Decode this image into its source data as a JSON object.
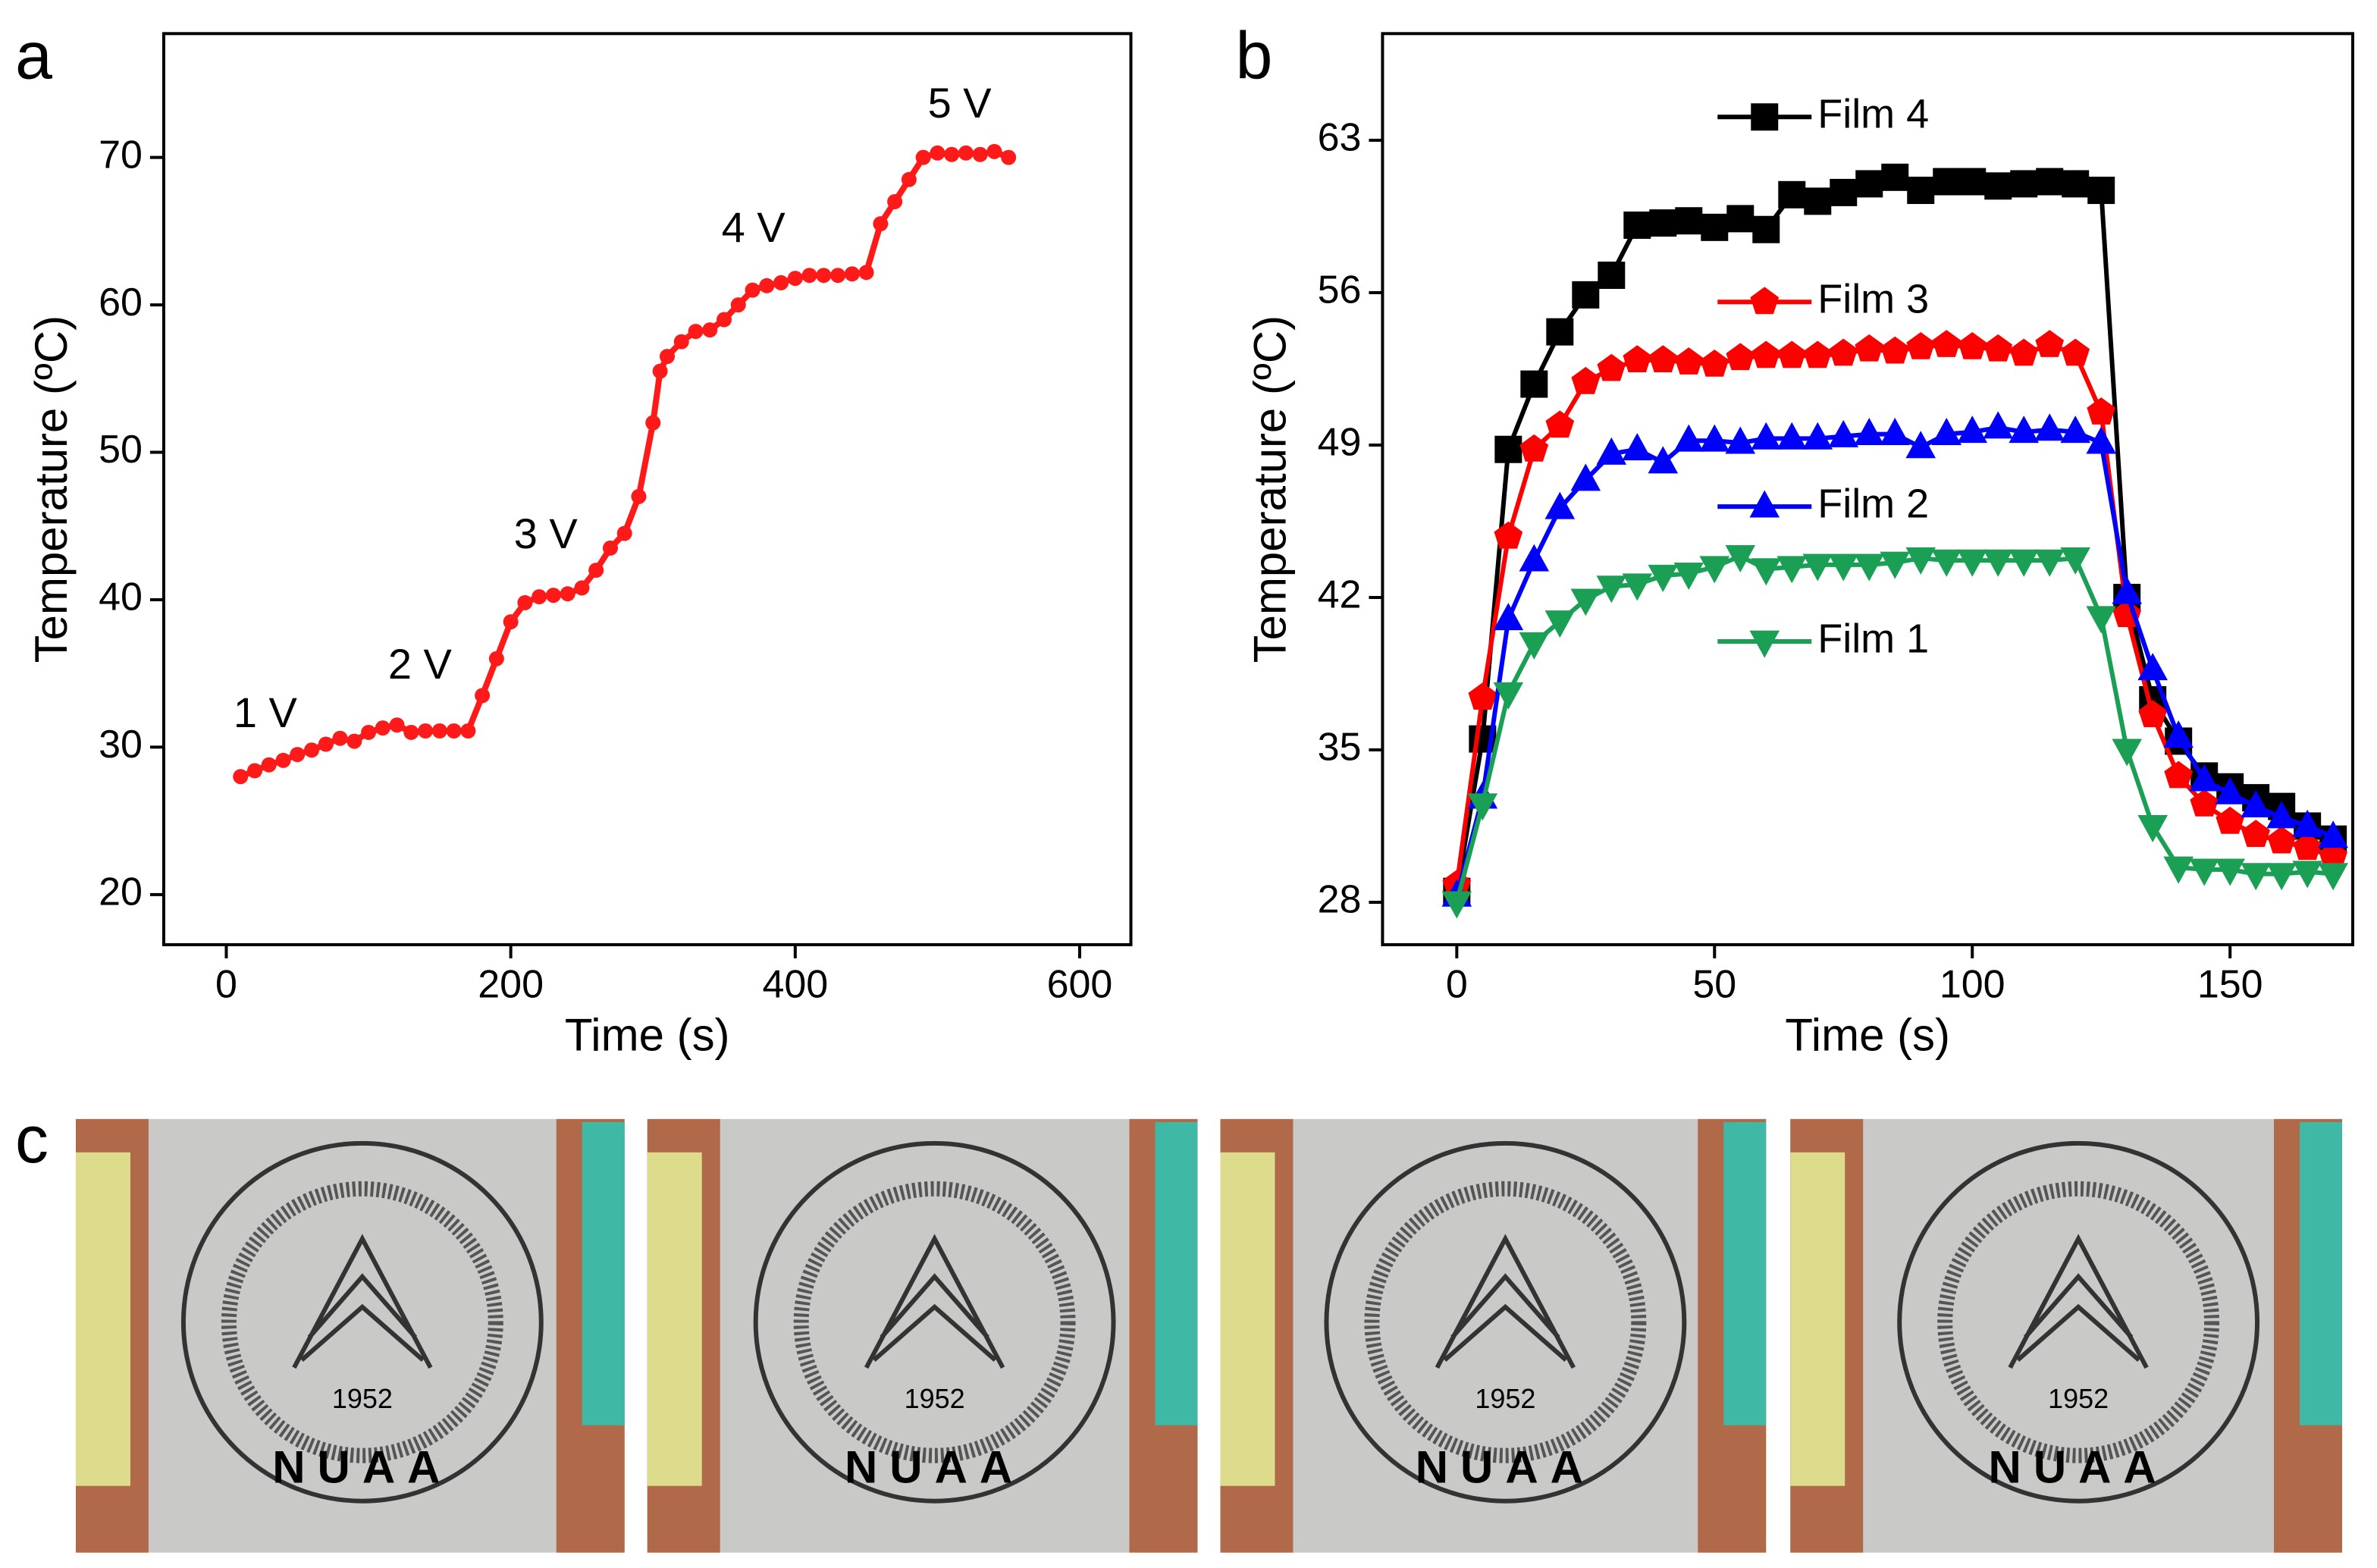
{
  "chart_data": [
    {
      "type": "line",
      "panel": "a",
      "xlabel": "Time (s)",
      "ylabel": "Temperature (ºC)",
      "color": "#ff1a1a",
      "x": [
        10,
        20,
        30,
        40,
        50,
        60,
        70,
        80,
        90,
        100,
        110,
        120,
        130,
        140,
        150,
        160,
        170,
        180,
        190,
        200,
        210,
        220,
        230,
        240,
        250,
        260,
        270,
        280,
        290,
        300,
        305,
        310,
        320,
        330,
        340,
        350,
        360,
        370,
        380,
        390,
        400,
        410,
        420,
        430,
        440,
        450,
        460,
        470,
        480,
        490,
        500,
        510,
        520,
        530,
        540,
        550
      ],
      "values": [
        28,
        28.4,
        28.8,
        29.1,
        29.5,
        29.8,
        30.2,
        30.6,
        30.4,
        31,
        31.3,
        31.5,
        31,
        31.1,
        31.1,
        31.1,
        31.1,
        33.5,
        36,
        38.5,
        39.8,
        40.2,
        40.3,
        40.4,
        40.8,
        42,
        43.5,
        44.5,
        47,
        52,
        55.5,
        56.5,
        57.5,
        58.2,
        58.3,
        59,
        60,
        61,
        61.3,
        61.5,
        61.8,
        62,
        62,
        62,
        62.1,
        62.2,
        65.5,
        67,
        68.5,
        70,
        70.3,
        70.2,
        70.3,
        70.2,
        70.4,
        70
      ],
      "annotations": [
        "1 V",
        "2 V",
        "3 V",
        "4 V",
        "5 V"
      ],
      "xlim": [
        -44,
        636
      ],
      "xticks": [
        0,
        200,
        400,
        600
      ],
      "ylim": [
        16.6,
        78.4
      ],
      "yticks": [
        20,
        30,
        40,
        50,
        60,
        70
      ]
    },
    {
      "type": "line",
      "panel": "b",
      "xlabel": "Time (s)",
      "ylabel": "Temperature (ºC)",
      "x": [
        0,
        5,
        10,
        15,
        20,
        25,
        30,
        35,
        40,
        45,
        50,
        55,
        60,
        65,
        70,
        75,
        80,
        85,
        90,
        95,
        100,
        105,
        110,
        115,
        120,
        125,
        130,
        135,
        140,
        145,
        150,
        155,
        160,
        165,
        170
      ],
      "series": [
        {
          "name": "Film 4",
          "color": "#000000",
          "marker": "square",
          "values": [
            28.5,
            35.5,
            48.8,
            51.8,
            54.2,
            55.9,
            56.8,
            59.1,
            59.2,
            59.3,
            59.0,
            59.4,
            58.9,
            60.5,
            60.2,
            60.6,
            61.0,
            61.3,
            60.7,
            61.1,
            61.1,
            60.9,
            61.0,
            61.1,
            61.0,
            60.7,
            42.0,
            37.3,
            35.4,
            33.8,
            33.3,
            32.8,
            32.4,
            31.5,
            30.9
          ]
        },
        {
          "name": "Film 3",
          "color": "#ff0000",
          "marker": "pentagon",
          "values": [
            28.8,
            37.4,
            44.8,
            48.8,
            49.9,
            51.9,
            52.5,
            52.9,
            52.9,
            52.8,
            52.7,
            53.0,
            53.1,
            53.1,
            53.1,
            53.2,
            53.4,
            53.3,
            53.5,
            53.6,
            53.5,
            53.4,
            53.2,
            53.6,
            53.2,
            50.5,
            41.2,
            36.6,
            33.8,
            32.5,
            31.7,
            31.1,
            30.8,
            30.5,
            30.1
          ]
        },
        {
          "name": "Film 2",
          "color": "#0000ff",
          "marker": "triangle-up",
          "values": [
            28.3,
            32.8,
            41.0,
            43.7,
            46.1,
            47.4,
            48.6,
            48.8,
            48.2,
            49.2,
            49.2,
            49.1,
            49.3,
            49.3,
            49.3,
            49.4,
            49.5,
            49.5,
            48.9,
            49.5,
            49.6,
            49.8,
            49.6,
            49.7,
            49.6,
            49.1,
            42.2,
            38.7,
            35.6,
            33.6,
            33.0,
            32.4,
            31.9,
            31.5,
            31.0
          ]
        },
        {
          "name": "Film 1",
          "color": "#1a9f55",
          "marker": "triangle-down",
          "values": [
            28.0,
            32.5,
            37.6,
            39.9,
            40.9,
            41.9,
            42.5,
            42.6,
            43.0,
            43.1,
            43.4,
            43.9,
            43.3,
            43.4,
            43.5,
            43.5,
            43.5,
            43.6,
            43.8,
            43.7,
            43.7,
            43.7,
            43.7,
            43.7,
            43.8,
            41.1,
            35.0,
            31.5,
            29.6,
            29.5,
            29.5,
            29.3,
            29.3,
            29.4,
            29.3
          ]
        }
      ],
      "xlim": [
        -14.4,
        173.8
      ],
      "xticks": [
        0,
        50,
        100,
        150
      ],
      "ylim": [
        26.05,
        67.9
      ],
      "yticks": [
        28,
        35,
        42,
        49,
        56,
        63
      ]
    }
  ],
  "photos": {
    "panel": "c",
    "year": "1952",
    "text": "NUAA"
  }
}
